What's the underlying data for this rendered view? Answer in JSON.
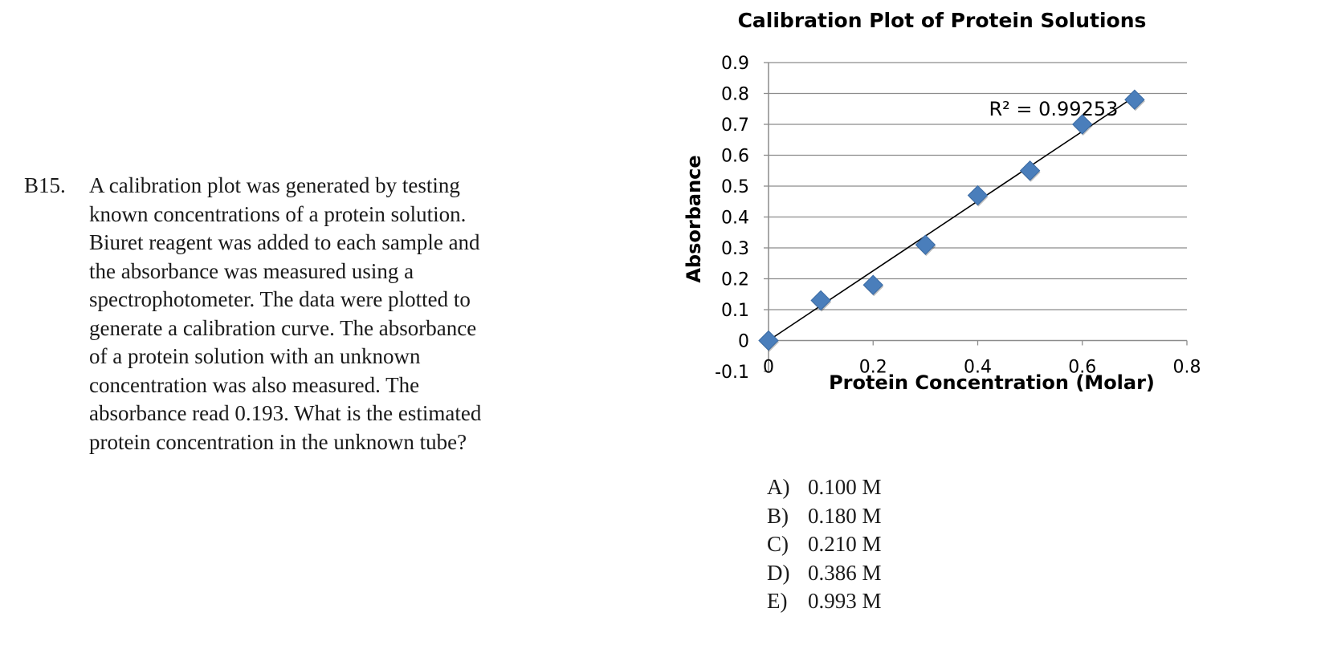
{
  "question": {
    "number": "B15.",
    "lines": [
      "A calibration plot was generated by testing",
      "known concentrations of a protein solution.",
      "Biuret reagent was added to each sample and",
      "the absorbance was measured using a",
      "spectrophotometer. The data were plotted to",
      "generate a calibration curve. The absorbance",
      "of a protein solution with an unknown",
      "concentration was also measured. The",
      "absorbance read 0.193. What is the estimated",
      "protein concentration in the unknown tube?"
    ]
  },
  "chart_data": {
    "type": "scatter",
    "title": "Calibration Plot of Protein Solutions",
    "xlabel": "Protein Concentration (Molar)",
    "ylabel": "Absorbance",
    "xlim": [
      0,
      0.8
    ],
    "ylim": [
      -0.1,
      0.9
    ],
    "x_ticks": [
      "0",
      "0.2",
      "0.4",
      "0.6",
      "0.8"
    ],
    "y_ticks": [
      "0.9",
      "0.8",
      "0.7",
      "0.6",
      "0.5",
      "0.4",
      "0.3",
      "0.2",
      "0.1",
      "0",
      "-0.1"
    ],
    "grid": true,
    "marker": "diamond",
    "marker_color": "#4a7ebb",
    "points": [
      {
        "x": 0.0,
        "y": 0.0
      },
      {
        "x": 0.1,
        "y": 0.13
      },
      {
        "x": 0.2,
        "y": 0.18
      },
      {
        "x": 0.3,
        "y": 0.31
      },
      {
        "x": 0.4,
        "y": 0.47
      },
      {
        "x": 0.5,
        "y": 0.55
      },
      {
        "x": 0.6,
        "y": 0.7
      },
      {
        "x": 0.7,
        "y": 0.78
      }
    ],
    "trendline": {
      "type": "linear",
      "x_start": 0.0,
      "y_start": 0.0,
      "x_end": 0.7,
      "y_end": 0.79,
      "r_squared_label": "R² = 0.99253"
    }
  },
  "choices": [
    {
      "letter": "A)",
      "text": "0.100 M"
    },
    {
      "letter": "B)",
      "text": "0.180 M"
    },
    {
      "letter": "C)",
      "text": "0.210 M"
    },
    {
      "letter": "D)",
      "text": "0.386 M"
    },
    {
      "letter": "E)",
      "text": "0.993 M"
    }
  ]
}
